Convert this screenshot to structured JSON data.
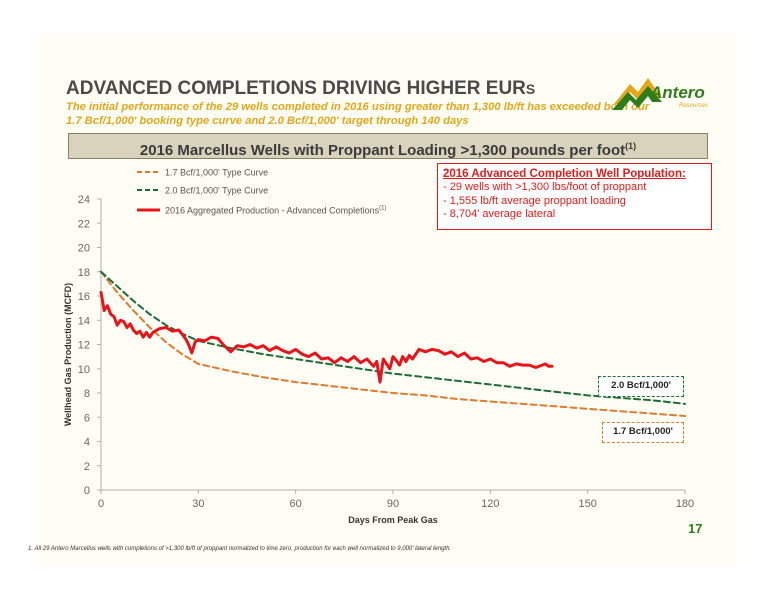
{
  "slide": {
    "title_main": "ADVANCED COMPLETIONS DRIVING HIGHER EUR",
    "title_suffix": "S",
    "subtitle": "The initial performance of the 29 wells completed in 2016 using greater than 1,300 lb/ft has exceeded both our 1.7 Bcf/1,000' booking type curve and 2.0 Bcf/1,000' target through 140 days",
    "banner": "2016 Marcellus Wells with Proppant Loading >1,300 pounds per foot",
    "banner_sup": "(1)",
    "logo_text": "Antero",
    "logo_subtext": "Resources",
    "page_number": "17",
    "footnote": "1. All 29 Antero Marcellus wells with completions of >1,300 lb/ft of proppant normalized to time zero, production for each well normalized to 9,000' lateral length."
  },
  "population_box": {
    "title": "2016 Advanced Completion Well Population:",
    "items": [
      "-  29 wells with >1,300 lbs/foot of proppant",
      "-  1,555 lb/ft average proppant loading",
      "-  8,704' average lateral"
    ]
  },
  "tags": {
    "green": "2.0 Bcf/1,000'",
    "orange": "1.7 Bcf/1,000'"
  },
  "colors": {
    "series_17": "#e07a2e",
    "series_20": "#1d6b38",
    "series_agg": "#e8141b",
    "axis": "#b0b0b0",
    "title": "#4a4a4a",
    "accent": "#e3a71c"
  },
  "chart_data": {
    "type": "line",
    "title": "",
    "xlabel": "Days From Peak Gas",
    "ylabel": "Wellhead Gas Production (MCFD)",
    "xlim": [
      0,
      180
    ],
    "ylim": [
      0,
      24
    ],
    "xticks": [
      0,
      30,
      60,
      90,
      120,
      150,
      180
    ],
    "yticks": [
      0,
      2,
      4,
      6,
      8,
      10,
      12,
      14,
      16,
      18,
      20,
      22,
      24
    ],
    "legend_position": "top-left",
    "series": [
      {
        "name": "1.7 Bcf/1,000' Type Curve",
        "style": "dashed",
        "x": [
          0,
          5,
          10,
          15,
          20,
          25,
          30,
          40,
          50,
          60,
          70,
          80,
          90,
          100,
          110,
          120,
          130,
          140,
          150,
          160,
          170,
          180
        ],
        "y": [
          18.0,
          16.3,
          14.8,
          13.4,
          12.2,
          11.2,
          10.4,
          9.8,
          9.3,
          8.9,
          8.6,
          8.3,
          8.0,
          7.8,
          7.5,
          7.3,
          7.1,
          6.9,
          6.7,
          6.5,
          6.3,
          6.1
        ]
      },
      {
        "name": "2.0 Bcf/1,000' Type Curve",
        "style": "dashed",
        "x": [
          0,
          5,
          10,
          15,
          20,
          25,
          30,
          40,
          50,
          60,
          70,
          80,
          90,
          100,
          110,
          120,
          130,
          140,
          150,
          160,
          170,
          180
        ],
        "y": [
          18.0,
          16.8,
          15.6,
          14.5,
          13.6,
          12.9,
          12.3,
          11.7,
          11.2,
          10.8,
          10.4,
          10.0,
          9.6,
          9.3,
          9.0,
          8.7,
          8.4,
          8.1,
          7.8,
          7.6,
          7.4,
          7.1
        ]
      },
      {
        "name": "2016 Aggregated Production - Advanced Completions",
        "name_sup": "(1)",
        "style": "solid",
        "x": [
          0,
          1,
          2,
          3,
          4,
          5,
          6,
          7,
          8,
          9,
          10,
          11,
          12,
          13,
          14,
          15,
          16,
          18,
          20,
          22,
          24,
          26,
          27,
          28,
          29,
          30,
          32,
          34,
          36,
          38,
          40,
          42,
          44,
          46,
          48,
          50,
          52,
          54,
          56,
          58,
          60,
          62,
          64,
          66,
          68,
          70,
          72,
          74,
          76,
          78,
          80,
          82,
          84,
          85,
          86,
          87,
          88,
          89,
          90,
          91,
          92,
          93,
          94,
          95,
          96,
          98,
          100,
          102,
          104,
          106,
          108,
          110,
          112,
          114,
          116,
          118,
          120,
          122,
          124,
          126,
          128,
          130,
          132,
          134,
          136,
          137,
          138,
          139
        ],
        "y": [
          16.3,
          14.8,
          15.2,
          14.5,
          14.3,
          13.6,
          14.0,
          13.9,
          13.4,
          13.7,
          13.2,
          12.9,
          13.1,
          12.6,
          13.0,
          12.6,
          13.0,
          13.3,
          13.4,
          13.1,
          13.2,
          12.5,
          12.0,
          11.3,
          12.2,
          12.4,
          12.3,
          12.6,
          12.5,
          11.9,
          11.4,
          11.9,
          11.8,
          12.0,
          11.7,
          11.9,
          11.5,
          11.8,
          11.5,
          11.3,
          11.6,
          11.2,
          11.0,
          11.3,
          10.8,
          10.9,
          10.5,
          10.9,
          10.6,
          11.0,
          10.5,
          10.8,
          10.2,
          10.6,
          8.9,
          10.8,
          10.4,
          10.0,
          11.0,
          10.7,
          10.3,
          11.0,
          10.6,
          11.1,
          10.8,
          11.6,
          11.4,
          11.6,
          11.5,
          11.2,
          11.4,
          11.0,
          11.3,
          10.8,
          10.9,
          10.6,
          10.8,
          10.5,
          10.5,
          10.2,
          10.4,
          10.3,
          10.3,
          10.1,
          10.3,
          10.4,
          10.2,
          10.2
        ]
      }
    ]
  }
}
